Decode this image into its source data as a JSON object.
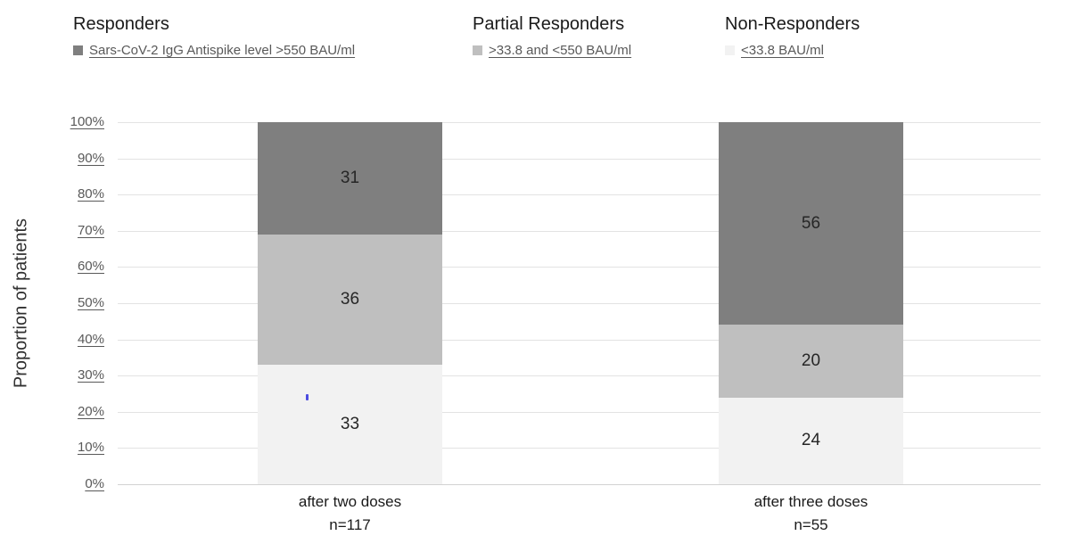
{
  "legend": {
    "groups": [
      {
        "title": "Responders",
        "label": "Sars-CoV-2 IgG Antispike level >550 BAU/ml"
      },
      {
        "title": "Partial Responders",
        "label": ">33.8 and <550 BAU/ml"
      },
      {
        "title": "Non-Responders",
        "label": "<33.8 BAU/ml"
      }
    ]
  },
  "chart_data": {
    "type": "bar",
    "stacked": true,
    "title": "",
    "ylabel": "Proportion of patients",
    "xlabel": "",
    "ylim": [
      0,
      100
    ],
    "ytick_step": 10,
    "ytick_labels": [
      "100%",
      "90%",
      "80%",
      "70%",
      "60%",
      "50%",
      "40%",
      "30%",
      "20%",
      "10%",
      "0%"
    ],
    "grid": true,
    "legend_position": "top",
    "categories": [
      "after two doses",
      "after three doses"
    ],
    "category_sublabels": [
      "n=117",
      "n=55"
    ],
    "series": [
      {
        "name": "Responders: Sars-CoV-2 IgG Antispike level >550 BAU/ml",
        "color": "#7f7f7f",
        "values": [
          31,
          56
        ]
      },
      {
        "name": "Partial Responders: >33.8 and <550 BAU/ml",
        "color": "#bfbfbf",
        "values": [
          36,
          20
        ]
      },
      {
        "name": "Non-Responders: <33.8 BAU/ml",
        "color": "#f2f2f2",
        "values": [
          33,
          24
        ]
      }
    ],
    "value_labels_shown": true
  },
  "colors": {
    "responders": "#7f7f7f",
    "partial_responders": "#bfbfbf",
    "non_responders": "#f2f2f2",
    "gridline": "#e3e3e3",
    "axis_line": "#d2d2d2",
    "tick_label": "#595959",
    "legend_sublabel": "#595959",
    "heading_text": "#1a1a1a",
    "stray_mark": "#4c4ce0"
  }
}
